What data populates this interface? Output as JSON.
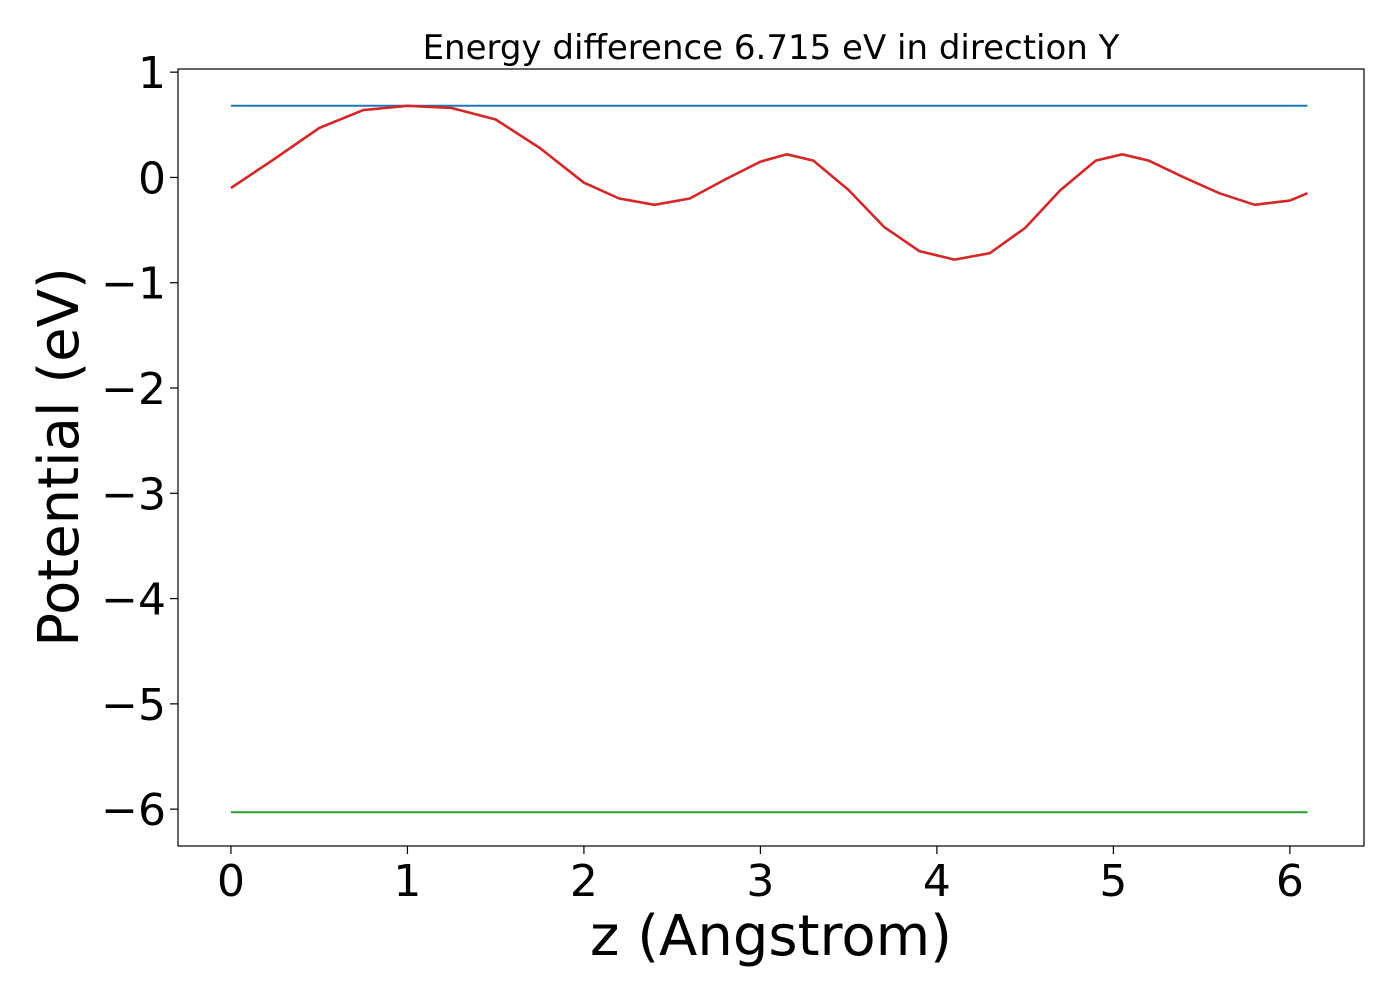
{
  "chart_data": {
    "type": "line",
    "title": "Energy difference 6.715 eV in direction Y",
    "xlabel": "z (Angstrom)",
    "ylabel": "Potential (eV)",
    "xlim": [
      -0.3,
      6.42
    ],
    "ylim": [
      -6.35,
      1.03
    ],
    "xticks": [
      0,
      1,
      2,
      3,
      4,
      5,
      6
    ],
    "xtick_labels": [
      "0",
      "1",
      "2",
      "3",
      "4",
      "5",
      "6"
    ],
    "yticks": [
      1,
      0,
      -1,
      -2,
      -3,
      -4,
      -5,
      -6
    ],
    "ytick_labels": [
      "1",
      "0",
      "−1",
      "−2",
      "−3",
      "−4",
      "−5",
      "−6"
    ],
    "grid": false,
    "series": [
      {
        "color": "#1f77b4",
        "x": [
          0,
          6.1
        ],
        "y": [
          0.68,
          0.68
        ]
      },
      {
        "color": "#2ca02c",
        "x": [
          0,
          6.1
        ],
        "y": [
          -6.03,
          -6.03
        ]
      },
      {
        "color": "#d62728",
        "x": [
          0,
          0.25,
          0.5,
          0.75,
          1.0,
          1.25,
          1.5,
          1.75,
          2.0,
          2.2,
          2.4,
          2.6,
          2.8,
          3.0,
          3.15,
          3.3,
          3.5,
          3.7,
          3.9,
          4.1,
          4.3,
          4.5,
          4.7,
          4.9,
          5.05,
          5.2,
          5.4,
          5.6,
          5.8,
          6.0,
          6.1
        ],
        "y": [
          -0.1,
          0.18,
          0.47,
          0.64,
          0.68,
          0.66,
          0.55,
          0.28,
          -0.05,
          -0.2,
          -0.26,
          -0.2,
          -0.02,
          0.15,
          0.22,
          0.16,
          -0.12,
          -0.47,
          -0.7,
          -0.78,
          -0.72,
          -0.48,
          -0.12,
          0.16,
          0.22,
          0.16,
          0.0,
          -0.15,
          -0.26,
          -0.22,
          -0.15
        ]
      }
    ]
  }
}
